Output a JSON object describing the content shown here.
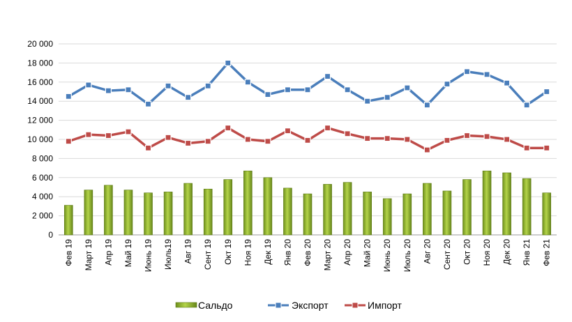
{
  "chart_data": {
    "type": "bar",
    "categories": [
      "Фев 19",
      "Март 19",
      "Апр 19",
      "Май 19",
      "Июнь 19",
      "Июль19",
      "Авг 19",
      "Сент 19",
      "Окт 19",
      "Ноя 19",
      "Дек 19",
      "Янв 20",
      "Фев 20",
      "Март 20",
      "Апр 20",
      "Май 20",
      "Июнь 20",
      "Июль 20",
      "Авг 20",
      "Сент 20",
      "Окт 20",
      "Ноя 20",
      "Дек 20",
      "Янв 21",
      "Фев 21"
    ],
    "series": [
      {
        "name": "Сальдо",
        "type": "bar",
        "color": "#8fb52a",
        "values": [
          3100,
          4700,
          5200,
          4700,
          4400,
          4500,
          5400,
          4800,
          5800,
          6700,
          6000,
          4900,
          4300,
          5300,
          5500,
          4500,
          3800,
          4300,
          5400,
          4600,
          5800,
          6700,
          6500,
          5900,
          4400
        ]
      },
      {
        "name": "Экспорт",
        "type": "line",
        "color": "#4a7ebb",
        "values": [
          14500,
          15700,
          15100,
          15200,
          13700,
          15600,
          14400,
          15600,
          18000,
          16000,
          14700,
          15200,
          15200,
          16600,
          15200,
          14000,
          14400,
          15400,
          13600,
          15800,
          17100,
          16800,
          15900,
          13600,
          15000
        ]
      },
      {
        "name": "Импорт",
        "type": "line",
        "color": "#be4b48",
        "values": [
          9800,
          10500,
          10400,
          10800,
          9100,
          10200,
          9600,
          9800,
          11200,
          10000,
          9800,
          10900,
          9900,
          11200,
          10600,
          10100,
          10100,
          10000,
          8900,
          9900,
          10400,
          10300,
          10000,
          9100,
          9100
        ]
      }
    ],
    "ylim": [
      0,
      20000
    ],
    "yticks": [
      "0",
      "2 000",
      "4 000",
      "6 000",
      "8 000",
      "10 000",
      "12 000",
      "14 000",
      "16 000",
      "18 000",
      "20 000"
    ],
    "grid": true,
    "legend": "bottom"
  }
}
